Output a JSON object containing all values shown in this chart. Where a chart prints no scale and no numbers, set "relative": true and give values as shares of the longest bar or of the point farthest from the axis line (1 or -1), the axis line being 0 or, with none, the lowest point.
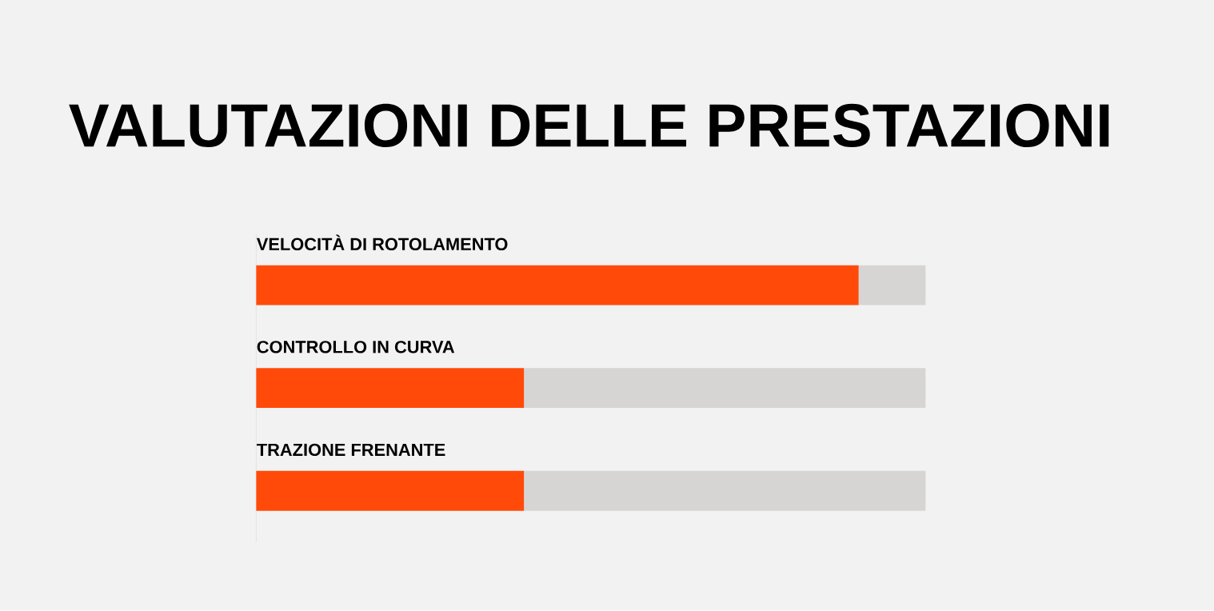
{
  "chart_data": {
    "type": "bar",
    "title": "VALUTAZIONI DELLE PRESTAZIONI",
    "orientation": "horizontal",
    "stacked": true,
    "relative": true,
    "categories": [
      "VELOCITÀ DI ROTOLAMENTO",
      "CONTROLLO IN CURVA",
      "TRAZIONE FRENANTE"
    ],
    "series": [
      {
        "color": "#ff4a0a",
        "values": [
          0.9,
          0.4,
          0.4
        ]
      },
      {
        "color": "#d6d5d4",
        "values": [
          0.1,
          0.6,
          0.6
        ]
      }
    ]
  }
}
